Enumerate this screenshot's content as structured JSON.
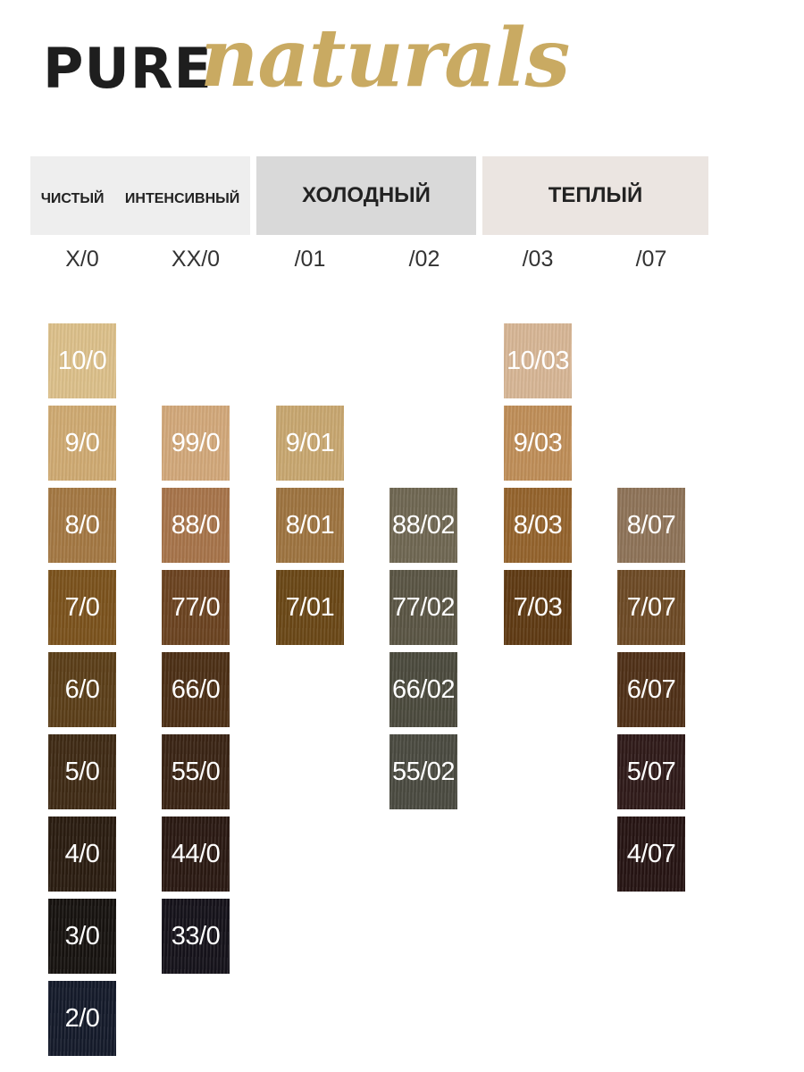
{
  "brand": {
    "pure": "PURE",
    "naturals": "naturals"
  },
  "headers": {
    "neutral_pure": "ЧИСТЫЙ",
    "neutral_intense": "ИНТЕНСИВНЫЙ",
    "cold": "ХОЛОДНЫЙ",
    "warm": "ТЕПЛЫЙ"
  },
  "columns": [
    {
      "code": "X/0",
      "shades": [
        {
          "label": "10/0",
          "color": "#dcc08a"
        },
        {
          "label": "9/0",
          "color": "#cfaa72"
        },
        {
          "label": "8/0",
          "color": "#a47843"
        },
        {
          "label": "7/0",
          "color": "#7b521c"
        },
        {
          "label": "6/0",
          "color": "#5b3e18"
        },
        {
          "label": "5/0",
          "color": "#3f2a14"
        },
        {
          "label": "4/0",
          "color": "#2a1c10"
        },
        {
          "label": "3/0",
          "color": "#16120f"
        },
        {
          "label": "2/0",
          "color": "#141a2a"
        }
      ]
    },
    {
      "code": "XX/0",
      "shades": [
        {
          "label": "99/0",
          "color": "#d2a87a"
        },
        {
          "label": "88/0",
          "color": "#a7744a"
        },
        {
          "label": "77/0",
          "color": "#6b4320"
        },
        {
          "label": "66/0",
          "color": "#4c2f15"
        },
        {
          "label": "55/0",
          "color": "#3a2414"
        },
        {
          "label": "44/0",
          "color": "#2a1912"
        },
        {
          "label": "33/0",
          "color": "#15121a"
        }
      ]
    },
    {
      "code": "/01",
      "shades": [
        {
          "label": "9/01",
          "color": "#c8a770"
        },
        {
          "label": "8/01",
          "color": "#9e7440"
        },
        {
          "label": "7/01",
          "color": "#6a4716"
        }
      ]
    },
    {
      "code": "/02",
      "shades": [
        {
          "label": "88/02",
          "color": "#6f6752"
        },
        {
          "label": "77/02",
          "color": "#5a5544"
        },
        {
          "label": "66/02",
          "color": "#4b4a3d"
        },
        {
          "label": "55/02",
          "color": "#4a4a40"
        }
      ]
    },
    {
      "code": "/03",
      "shades": [
        {
          "label": "10/03",
          "color": "#d7b695"
        },
        {
          "label": "9/03",
          "color": "#bf8e58"
        },
        {
          "label": "8/03",
          "color": "#94632c"
        },
        {
          "label": "7/03",
          "color": "#5f3a13"
        }
      ]
    },
    {
      "code": "/07",
      "shades": [
        {
          "label": "8/07",
          "color": "#8e7358"
        },
        {
          "label": "7/07",
          "color": "#6d4a25"
        },
        {
          "label": "6/07",
          "color": "#4f3017"
        },
        {
          "label": "5/07",
          "color": "#2f1a19"
        },
        {
          "label": "4/07",
          "color": "#261413"
        }
      ]
    }
  ]
}
